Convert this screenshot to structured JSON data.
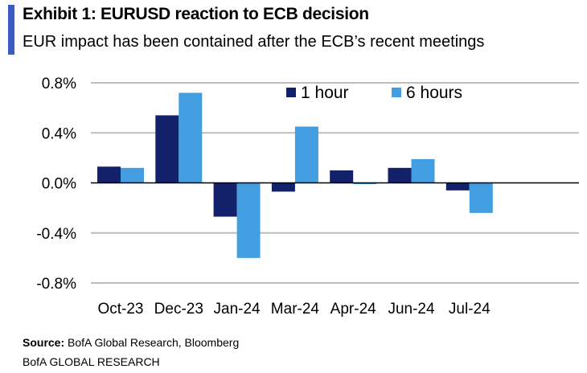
{
  "header": {
    "title": "Exhibit 1: EURUSD reaction to ECB decision",
    "subtitle": "EUR impact has been contained after the ECB’s recent meetings"
  },
  "footer": {
    "source_label": "Source:",
    "source_text": " BofA Global Research, Bloomberg",
    "brand": "BofA GLOBAL RESEARCH"
  },
  "chart_data": {
    "type": "bar",
    "title": "Exhibit 1: EURUSD reaction to ECB decision",
    "categories": [
      "Oct-23",
      "Dec-23",
      "Jan-24",
      "Mar-24",
      "Apr-24",
      "Jun-24",
      "Jul-24"
    ],
    "series": [
      {
        "name": "1 hour",
        "color": "#13216a",
        "values": [
          0.13,
          0.54,
          -0.27,
          -0.07,
          0.1,
          0.12,
          -0.06
        ]
      },
      {
        "name": "6 hours",
        "color": "#429ee0",
        "values": [
          0.12,
          0.72,
          -0.6,
          0.45,
          -0.01,
          0.19,
          -0.24
        ]
      }
    ],
    "ylim": [
      -0.8,
      0.8
    ],
    "yticks": [
      "0.8%",
      "0.4%",
      "0.0%",
      "-0.4%",
      "-0.8%"
    ],
    "ytick_values": [
      0.8,
      0.4,
      0,
      -0.4,
      -0.8
    ],
    "grid": true,
    "legend": "top-right",
    "unit": "%"
  }
}
